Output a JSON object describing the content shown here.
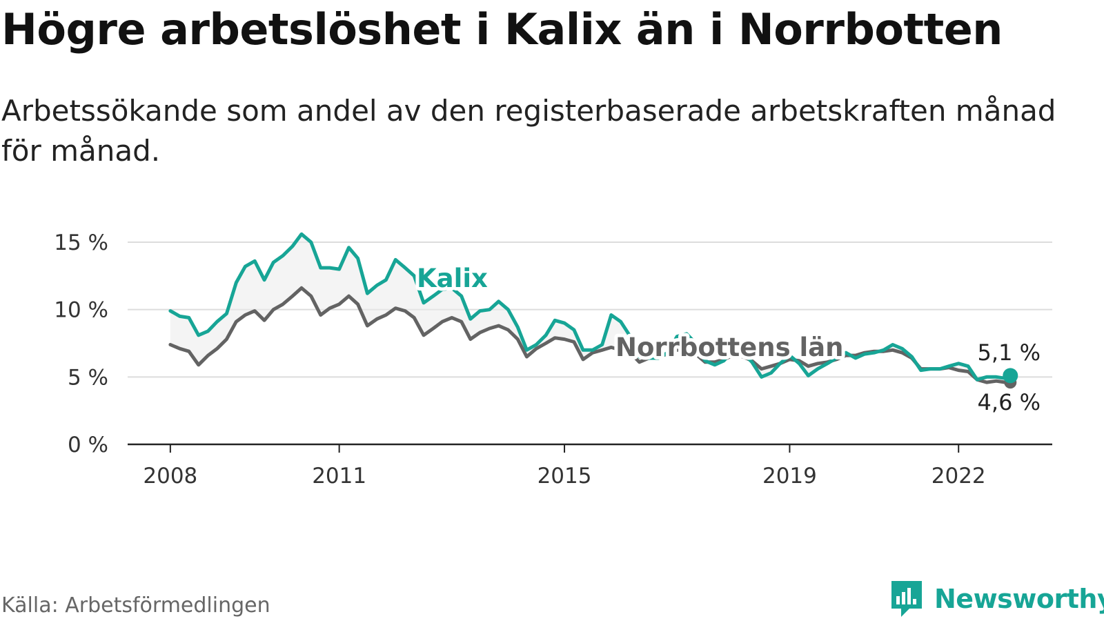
{
  "title": "Högre arbetslöshet i Kalix än i Norrbotten",
  "subtitle": "Arbetssökande som andel av den registerbaserade arbetskraften månad för månad.",
  "source": "Källa: Arbetsförmedlingen",
  "brand": "Newsworthy",
  "colors": {
    "kalix": "#17a596",
    "norrbotten": "#636363",
    "grid": "#dcdcdc",
    "axis": "#222222",
    "fill": "#ebebeb"
  },
  "chart_data": {
    "type": "line",
    "title": "Högre arbetslöshet i Kalix än i Norrbotten",
    "xlabel": "",
    "ylabel": "",
    "xlim": [
      2007.5,
      2023.75
    ],
    "ylim": [
      0,
      15.5
    ],
    "x_ticks": [
      {
        "value": 2008,
        "label": "2008"
      },
      {
        "value": 2011,
        "label": "2011"
      },
      {
        "value": 2015,
        "label": "2015"
      },
      {
        "value": 2019,
        "label": "2019"
      },
      {
        "value": 2022,
        "label": "2022"
      }
    ],
    "y_ticks": [
      {
        "value": 0,
        "label": "0 %"
      },
      {
        "value": 5,
        "label": "5 %"
      },
      {
        "value": 10,
        "label": "10 %"
      },
      {
        "value": 15,
        "label": "15 %"
      }
    ],
    "grid": true,
    "series": [
      {
        "name": "Kalix",
        "label": "Kalix",
        "color_key": "kalix",
        "end_label": "5,1 %",
        "points": [
          [
            2008.0,
            9.9
          ],
          [
            2008.17,
            9.5
          ],
          [
            2008.33,
            9.4
          ],
          [
            2008.5,
            8.1
          ],
          [
            2008.67,
            8.4
          ],
          [
            2008.83,
            9.1
          ],
          [
            2009.0,
            9.7
          ],
          [
            2009.17,
            12.0
          ],
          [
            2009.33,
            13.2
          ],
          [
            2009.5,
            13.6
          ],
          [
            2009.67,
            12.2
          ],
          [
            2009.83,
            13.5
          ],
          [
            2010.0,
            14.0
          ],
          [
            2010.17,
            14.7
          ],
          [
            2010.33,
            15.6
          ],
          [
            2010.5,
            15.0
          ],
          [
            2010.67,
            13.1
          ],
          [
            2010.83,
            13.1
          ],
          [
            2011.0,
            13.0
          ],
          [
            2011.17,
            14.6
          ],
          [
            2011.33,
            13.8
          ],
          [
            2011.5,
            11.2
          ],
          [
            2011.67,
            11.8
          ],
          [
            2011.83,
            12.2
          ],
          [
            2012.0,
            13.7
          ],
          [
            2012.17,
            13.1
          ],
          [
            2012.33,
            12.5
          ],
          [
            2012.5,
            10.5
          ],
          [
            2012.67,
            11.0
          ],
          [
            2012.83,
            11.5
          ],
          [
            2013.0,
            11.6
          ],
          [
            2013.17,
            11.0
          ],
          [
            2013.33,
            9.3
          ],
          [
            2013.5,
            9.9
          ],
          [
            2013.67,
            10.0
          ],
          [
            2013.83,
            10.6
          ],
          [
            2014.0,
            10.0
          ],
          [
            2014.17,
            8.7
          ],
          [
            2014.33,
            7.0
          ],
          [
            2014.5,
            7.4
          ],
          [
            2014.67,
            8.1
          ],
          [
            2014.83,
            9.2
          ],
          [
            2015.0,
            9.0
          ],
          [
            2015.17,
            8.5
          ],
          [
            2015.33,
            7.0
          ],
          [
            2015.5,
            7.0
          ],
          [
            2015.67,
            7.4
          ],
          [
            2015.83,
            9.6
          ],
          [
            2016.0,
            9.1
          ],
          [
            2016.17,
            8.0
          ],
          [
            2016.33,
            6.5
          ],
          [
            2016.5,
            6.4
          ],
          [
            2016.67,
            6.4
          ],
          [
            2016.83,
            6.8
          ],
          [
            2017.0,
            8.0
          ],
          [
            2017.17,
            8.2
          ],
          [
            2017.33,
            7.5
          ],
          [
            2017.5,
            6.2
          ],
          [
            2017.67,
            5.9
          ],
          [
            2017.83,
            6.2
          ],
          [
            2018.0,
            7.0
          ],
          [
            2018.17,
            6.8
          ],
          [
            2018.33,
            6.1
          ],
          [
            2018.5,
            5.0
          ],
          [
            2018.67,
            5.3
          ],
          [
            2018.83,
            6.0
          ],
          [
            2019.0,
            6.6
          ],
          [
            2019.17,
            6.0
          ],
          [
            2019.33,
            5.1
          ],
          [
            2019.5,
            5.6
          ],
          [
            2019.67,
            6.0
          ],
          [
            2019.83,
            6.4
          ],
          [
            2020.0,
            6.8
          ],
          [
            2020.17,
            6.4
          ],
          [
            2020.33,
            6.7
          ],
          [
            2020.5,
            6.8
          ],
          [
            2020.67,
            7.0
          ],
          [
            2020.83,
            7.4
          ],
          [
            2021.0,
            7.1
          ],
          [
            2021.17,
            6.5
          ],
          [
            2021.33,
            5.5
          ],
          [
            2021.5,
            5.6
          ],
          [
            2021.67,
            5.6
          ],
          [
            2021.83,
            5.8
          ],
          [
            2022.0,
            6.0
          ],
          [
            2022.17,
            5.8
          ],
          [
            2022.33,
            4.8
          ],
          [
            2022.5,
            5.0
          ],
          [
            2022.67,
            5.0
          ],
          [
            2022.83,
            4.9
          ],
          [
            2022.92,
            5.1
          ]
        ]
      },
      {
        "name": "Norrbottens län",
        "label": "Norrbottens län",
        "color_key": "norrbotten",
        "end_label": "4,6 %",
        "points": [
          [
            2008.0,
            7.4
          ],
          [
            2008.17,
            7.1
          ],
          [
            2008.33,
            6.9
          ],
          [
            2008.5,
            5.9
          ],
          [
            2008.67,
            6.6
          ],
          [
            2008.83,
            7.1
          ],
          [
            2009.0,
            7.8
          ],
          [
            2009.17,
            9.1
          ],
          [
            2009.33,
            9.6
          ],
          [
            2009.5,
            9.9
          ],
          [
            2009.67,
            9.2
          ],
          [
            2009.83,
            10.0
          ],
          [
            2010.0,
            10.4
          ],
          [
            2010.17,
            11.0
          ],
          [
            2010.33,
            11.6
          ],
          [
            2010.5,
            11.0
          ],
          [
            2010.67,
            9.6
          ],
          [
            2010.83,
            10.1
          ],
          [
            2011.0,
            10.4
          ],
          [
            2011.17,
            11.0
          ],
          [
            2011.33,
            10.4
          ],
          [
            2011.5,
            8.8
          ],
          [
            2011.67,
            9.3
          ],
          [
            2011.83,
            9.6
          ],
          [
            2012.0,
            10.1
          ],
          [
            2012.17,
            9.9
          ],
          [
            2012.33,
            9.4
          ],
          [
            2012.5,
            8.1
          ],
          [
            2012.67,
            8.6
          ],
          [
            2012.83,
            9.1
          ],
          [
            2013.0,
            9.4
          ],
          [
            2013.17,
            9.1
          ],
          [
            2013.33,
            7.8
          ],
          [
            2013.5,
            8.3
          ],
          [
            2013.67,
            8.6
          ],
          [
            2013.83,
            8.8
          ],
          [
            2014.0,
            8.5
          ],
          [
            2014.17,
            7.8
          ],
          [
            2014.33,
            6.5
          ],
          [
            2014.5,
            7.1
          ],
          [
            2014.67,
            7.5
          ],
          [
            2014.83,
            7.9
          ],
          [
            2015.0,
            7.8
          ],
          [
            2015.17,
            7.6
          ],
          [
            2015.33,
            6.3
          ],
          [
            2015.5,
            6.8
          ],
          [
            2015.67,
            7.0
          ],
          [
            2015.83,
            7.2
          ],
          [
            2016.0,
            7.0
          ],
          [
            2016.17,
            6.8
          ],
          [
            2016.33,
            6.1
          ],
          [
            2016.5,
            6.4
          ],
          [
            2016.67,
            6.5
          ],
          [
            2016.83,
            6.7
          ],
          [
            2017.0,
            7.0
          ],
          [
            2017.17,
            7.0
          ],
          [
            2017.33,
            6.7
          ],
          [
            2017.5,
            6.1
          ],
          [
            2017.67,
            6.1
          ],
          [
            2017.83,
            6.3
          ],
          [
            2018.0,
            6.6
          ],
          [
            2018.17,
            6.5
          ],
          [
            2018.33,
            6.2
          ],
          [
            2018.5,
            5.6
          ],
          [
            2018.67,
            5.8
          ],
          [
            2018.83,
            6.0
          ],
          [
            2019.0,
            6.3
          ],
          [
            2019.17,
            6.2
          ],
          [
            2019.33,
            5.8
          ],
          [
            2019.5,
            6.0
          ],
          [
            2019.67,
            6.1
          ],
          [
            2019.83,
            6.3
          ],
          [
            2020.0,
            6.6
          ],
          [
            2020.17,
            6.6
          ],
          [
            2020.33,
            6.8
          ],
          [
            2020.5,
            6.9
          ],
          [
            2020.67,
            6.9
          ],
          [
            2020.83,
            7.0
          ],
          [
            2021.0,
            6.8
          ],
          [
            2021.17,
            6.4
          ],
          [
            2021.33,
            5.6
          ],
          [
            2021.5,
            5.6
          ],
          [
            2021.67,
            5.6
          ],
          [
            2021.83,
            5.7
          ],
          [
            2022.0,
            5.5
          ],
          [
            2022.17,
            5.4
          ],
          [
            2022.33,
            4.8
          ],
          [
            2022.5,
            4.6
          ],
          [
            2022.67,
            4.7
          ],
          [
            2022.83,
            4.6
          ],
          [
            2022.92,
            4.6
          ]
        ]
      }
    ]
  }
}
